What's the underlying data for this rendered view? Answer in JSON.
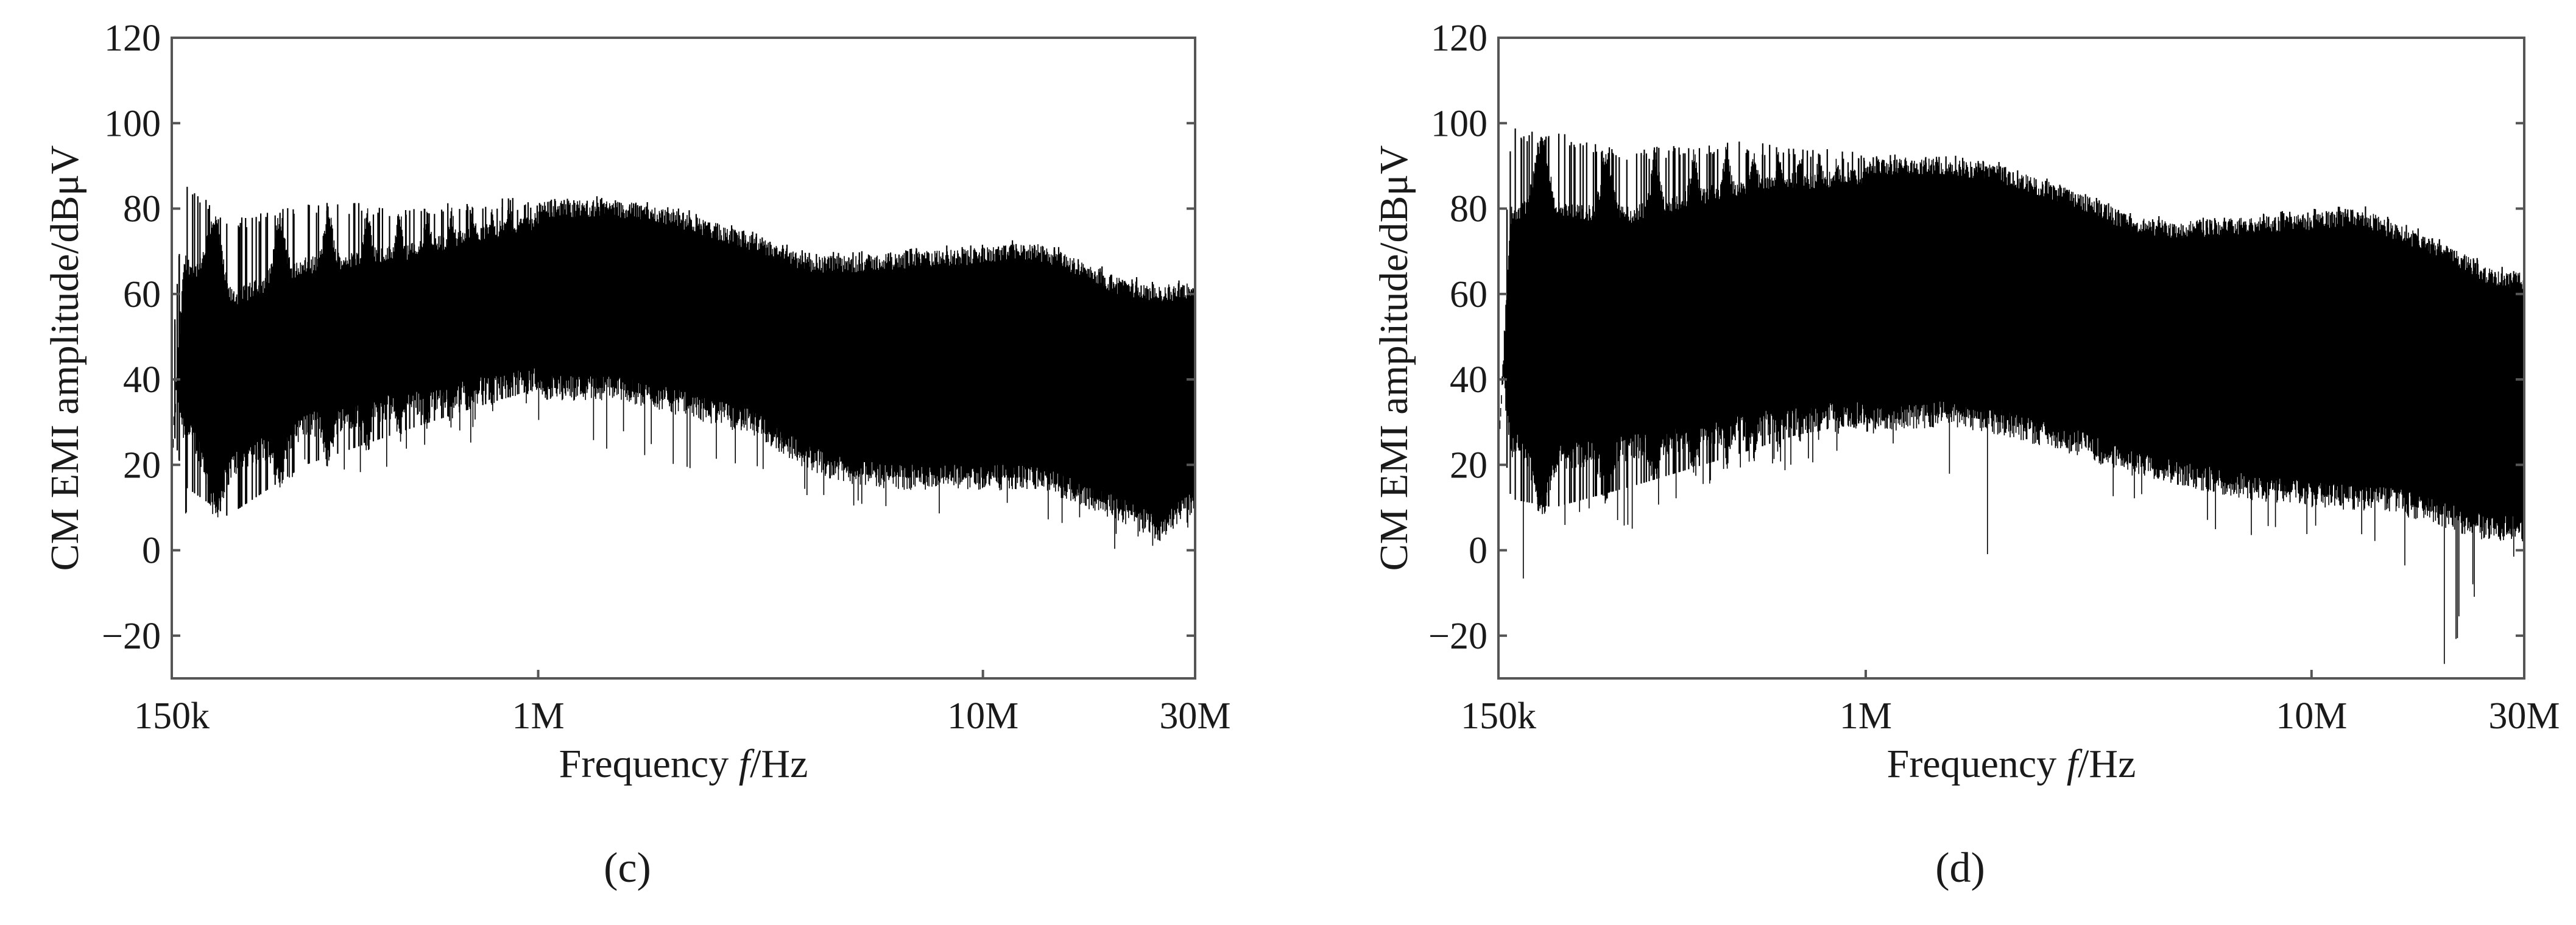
{
  "chart_data": [
    {
      "type": "line",
      "panel_label": "(c)",
      "xlabel_prefix": "Frequency ",
      "xlabel_var": "f",
      "xlabel_unit": "/Hz",
      "ylabel": "CM EMI amplitude/dBμV",
      "x_scale": "log",
      "xlim": [
        150000,
        30000000
      ],
      "ylim": [
        -30,
        120
      ],
      "x_ticks": [
        {
          "value": 150000,
          "label": "150k"
        },
        {
          "value": 1000000,
          "label": "1M"
        },
        {
          "value": 10000000,
          "label": "10M"
        },
        {
          "value": 30000000,
          "label": "30M"
        }
      ],
      "y_ticks": [
        {
          "value": -20,
          "label": "−20"
        },
        {
          "value": 0,
          "label": "0"
        },
        {
          "value": 20,
          "label": "20"
        },
        {
          "value": 40,
          "label": "40"
        },
        {
          "value": 60,
          "label": "60"
        },
        {
          "value": 80,
          "label": "80"
        },
        {
          "value": 100,
          "label": "100"
        },
        {
          "value": 120,
          "label": "120"
        }
      ],
      "grid": false,
      "legend": "none",
      "series_color": "#000000",
      "envelope": {
        "x": [
          150000,
          160000,
          200000,
          300000,
          500000,
          700000,
          1000000,
          1500000,
          2000000,
          3000000,
          4000000,
          5000000,
          7000000,
          10000000,
          13000000,
          15000000,
          20000000,
          25000000,
          30000000
        ],
        "upper": [
          40,
          85,
          74,
          79,
          78,
          79,
          80,
          80,
          78,
          72,
          67,
          67,
          68,
          69,
          70,
          68,
          62,
          60,
          61
        ],
        "lower": [
          30,
          15,
          8,
          20,
          28,
          33,
          38,
          38,
          35,
          30,
          22,
          18,
          17,
          17,
          17,
          15,
          10,
          5,
          12
        ],
        "min_dips": [
          20,
          7,
          10,
          16,
          20,
          25,
          25,
          23,
          20,
          15,
          10,
          8,
          7,
          8,
          8,
          3,
          0,
          0,
          3
        ]
      },
      "harmonics_visible_upto": 1000000
    },
    {
      "type": "line",
      "panel_label": "(d)",
      "xlabel_prefix": "Frequency ",
      "xlabel_var": "f",
      "xlabel_unit": "/Hz",
      "ylabel": "CM EMI amplitude/dBμV",
      "x_scale": "log",
      "xlim": [
        150000,
        30000000
      ],
      "ylim": [
        -30,
        120
      ],
      "x_ticks": [
        {
          "value": 150000,
          "label": "150k"
        },
        {
          "value": 1000000,
          "label": "1M"
        },
        {
          "value": 10000000,
          "label": "10M"
        },
        {
          "value": 30000000,
          "label": "30M"
        }
      ],
      "y_ticks": [
        {
          "value": -20,
          "label": "−20"
        },
        {
          "value": 0,
          "label": "0"
        },
        {
          "value": 20,
          "label": "20"
        },
        {
          "value": 40,
          "label": "40"
        },
        {
          "value": 60,
          "label": "60"
        },
        {
          "value": 80,
          "label": "80"
        },
        {
          "value": 100,
          "label": "100"
        },
        {
          "value": 120,
          "label": "120"
        }
      ],
      "grid": false,
      "legend": "none",
      "series_color": "#000000",
      "envelope": {
        "x": [
          150000,
          160000,
          200000,
          300000,
          500000,
          700000,
          1000000,
          1500000,
          2000000,
          3000000,
          4000000,
          5000000,
          7000000,
          10000000,
          13000000,
          15000000,
          20000000,
          25000000,
          30000000
        ],
        "upper": [
          42,
          96,
          95,
          91,
          93,
          92,
          90,
          90,
          88,
          82,
          76,
          75,
          76,
          77,
          78,
          75,
          70,
          64,
          63
        ],
        "lower": [
          35,
          12,
          10,
          15,
          22,
          27,
          30,
          32,
          30,
          25,
          20,
          18,
          15,
          13,
          12,
          12,
          8,
          5,
          5
        ],
        "min_dips": [
          30,
          -16,
          5,
          5,
          15,
          18,
          20,
          20,
          -8,
          10,
          8,
          5,
          3,
          0,
          0,
          0,
          -28,
          -5,
          -5
        ]
      },
      "harmonics_visible_upto": 1000000
    }
  ]
}
